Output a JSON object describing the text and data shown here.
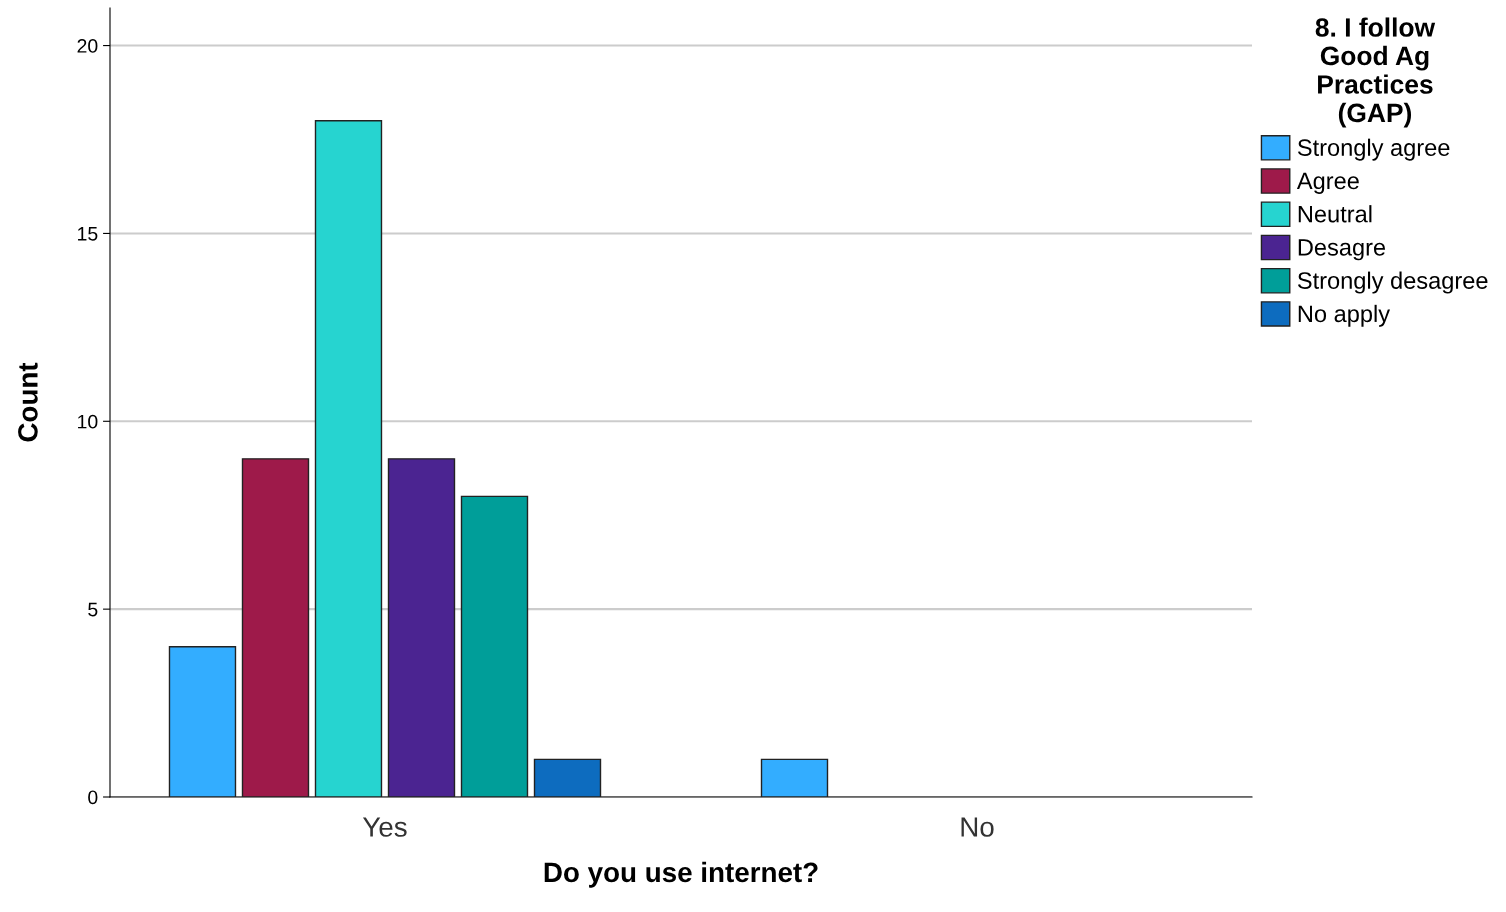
{
  "chart_data": {
    "type": "bar",
    "xlabel": "Do you use internet?",
    "ylabel": "Count",
    "legend_title": "8. I follow\nGood Ag\nPractices\n(GAP)",
    "categories": [
      "Yes",
      "No"
    ],
    "series": [
      {
        "name": "Strongly agree",
        "color": "#33adff",
        "values": [
          4,
          1
        ]
      },
      {
        "name": "Agree",
        "color": "#9e1a4a",
        "values": [
          9,
          null
        ]
      },
      {
        "name": "Neutral",
        "color": "#26d4d0",
        "values": [
          18,
          null
        ]
      },
      {
        "name": "Desagre",
        "color": "#4b2491",
        "values": [
          9,
          null
        ]
      },
      {
        "name": "Strongly desagree",
        "color": "#009e99",
        "values": [
          8,
          null
        ]
      },
      {
        "name": "No apply",
        "color": "#0d6cbf",
        "values": [
          1,
          null
        ]
      }
    ],
    "ylim": [
      0,
      21
    ],
    "yticks": [
      0,
      5,
      10,
      15,
      20
    ],
    "grid": "y",
    "legend": "top right"
  }
}
